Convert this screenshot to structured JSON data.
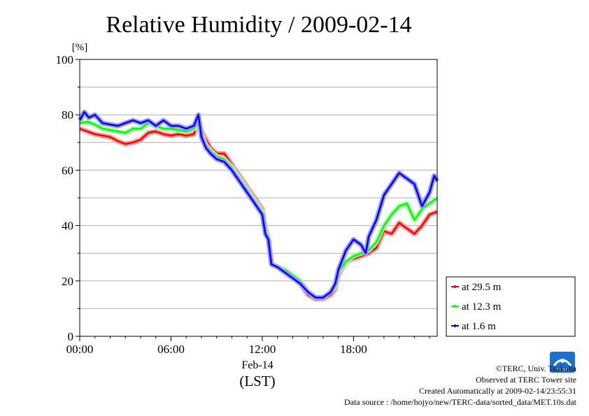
{
  "chart_data": {
    "type": "line",
    "title": "Relative Humidity / 2009-02-14",
    "ylabel": "[%]",
    "xlabel": "Feb-14",
    "xlabel2": "(LST)",
    "ylim": [
      0,
      100
    ],
    "yticks": [
      "0",
      "20",
      "40",
      "60",
      "80",
      "100"
    ],
    "xlim": [
      0,
      23.5
    ],
    "xticks": [
      {
        "h": 0,
        "label": "00:00"
      },
      {
        "h": 6,
        "label": "06:00"
      },
      {
        "h": 12,
        "label": "12:00"
      },
      {
        "h": 18,
        "label": "18:00"
      }
    ],
    "grid": "horizontal",
    "legend_position": "bottom-right-outside",
    "series": [
      {
        "name": "at 29.5 m",
        "color": "#ff0000",
        "points": [
          [
            0,
            75
          ],
          [
            0.5,
            74
          ],
          [
            1,
            73
          ],
          [
            1.5,
            72.5
          ],
          [
            2,
            72
          ],
          [
            2.5,
            70.5
          ],
          [
            3,
            69.5
          ],
          [
            3.5,
            70
          ],
          [
            4,
            71
          ],
          [
            4.5,
            73.5
          ],
          [
            5,
            74
          ],
          [
            5.5,
            73
          ],
          [
            6,
            72.5
          ],
          [
            6.5,
            73
          ],
          [
            7,
            72.5
          ],
          [
            7.5,
            73
          ],
          [
            7.8,
            79
          ],
          [
            8,
            74
          ],
          [
            8.3,
            71
          ],
          [
            8.6,
            68
          ],
          [
            9,
            66
          ],
          [
            9.5,
            66
          ],
          [
            10,
            62
          ],
          [
            10.5,
            58
          ],
          [
            11,
            54
          ],
          [
            11.5,
            50
          ],
          [
            12,
            46
          ],
          [
            12.2,
            39
          ],
          [
            12.4,
            36
          ],
          [
            12.6,
            26
          ],
          [
            13,
            25
          ],
          [
            13.5,
            24
          ],
          [
            14,
            22
          ],
          [
            14.5,
            19
          ],
          [
            15,
            15
          ],
          [
            15.5,
            13.5
          ],
          [
            16,
            13.5
          ],
          [
            16.5,
            15
          ],
          [
            16.8,
            17
          ],
          [
            17,
            22
          ],
          [
            17.5,
            27
          ],
          [
            18,
            28
          ],
          [
            18.5,
            29
          ],
          [
            19,
            30
          ],
          [
            19.5,
            32
          ],
          [
            20,
            38
          ],
          [
            20.5,
            37
          ],
          [
            21,
            41
          ],
          [
            21.5,
            39
          ],
          [
            22,
            37
          ],
          [
            22.5,
            40
          ],
          [
            23,
            44
          ],
          [
            23.5,
            45
          ]
        ]
      },
      {
        "name": "at 12.3 m",
        "color": "#00ff00",
        "points": [
          [
            0,
            77
          ],
          [
            0.5,
            77.5
          ],
          [
            1,
            76.5
          ],
          [
            1.5,
            75
          ],
          [
            2,
            74.5
          ],
          [
            2.5,
            74
          ],
          [
            3,
            73.5
          ],
          [
            3.5,
            75
          ],
          [
            4,
            75
          ],
          [
            4.5,
            77
          ],
          [
            5,
            76
          ],
          [
            5.5,
            75
          ],
          [
            6,
            75
          ],
          [
            6.5,
            74.5
          ],
          [
            7,
            74
          ],
          [
            7.5,
            75
          ],
          [
            7.8,
            77
          ],
          [
            8,
            73
          ],
          [
            8.3,
            69
          ],
          [
            8.6,
            67
          ],
          [
            9,
            65
          ],
          [
            9.5,
            64
          ],
          [
            10,
            61
          ],
          [
            10.5,
            57
          ],
          [
            11,
            53
          ],
          [
            11.5,
            49
          ],
          [
            12,
            45
          ],
          [
            12.2,
            38
          ],
          [
            12.4,
            36
          ],
          [
            12.6,
            26
          ],
          [
            13,
            25
          ],
          [
            13.5,
            24
          ],
          [
            14,
            22
          ],
          [
            14.5,
            20
          ],
          [
            15,
            16
          ],
          [
            15.5,
            14
          ],
          [
            16,
            14
          ],
          [
            16.5,
            16
          ],
          [
            16.8,
            18
          ],
          [
            17,
            23
          ],
          [
            17.5,
            27
          ],
          [
            18,
            29
          ],
          [
            18.5,
            30
          ],
          [
            19,
            31
          ],
          [
            19.5,
            34
          ],
          [
            20,
            40
          ],
          [
            20.5,
            44
          ],
          [
            21,
            47
          ],
          [
            21.5,
            48
          ],
          [
            22,
            42
          ],
          [
            22.5,
            46
          ],
          [
            23,
            48
          ],
          [
            23.5,
            50
          ]
        ]
      },
      {
        "name": "at 1.6 m",
        "color": "#0000ff",
        "points": [
          [
            0,
            78
          ],
          [
            0.3,
            81
          ],
          [
            0.6,
            79
          ],
          [
            1,
            80
          ],
          [
            1.5,
            77
          ],
          [
            2,
            76.5
          ],
          [
            2.5,
            76
          ],
          [
            3,
            77
          ],
          [
            3.5,
            78
          ],
          [
            4,
            77
          ],
          [
            4.5,
            78
          ],
          [
            5,
            76
          ],
          [
            5.5,
            78
          ],
          [
            6,
            76
          ],
          [
            6.5,
            76
          ],
          [
            7,
            75
          ],
          [
            7.5,
            76
          ],
          [
            7.8,
            80
          ],
          [
            8,
            72
          ],
          [
            8.3,
            68
          ],
          [
            8.6,
            66
          ],
          [
            9,
            64
          ],
          [
            9.5,
            63
          ],
          [
            10,
            60
          ],
          [
            10.5,
            56
          ],
          [
            11,
            52
          ],
          [
            11.5,
            48
          ],
          [
            12,
            44
          ],
          [
            12.2,
            37
          ],
          [
            12.4,
            35
          ],
          [
            12.6,
            26
          ],
          [
            13,
            25
          ],
          [
            13.5,
            23
          ],
          [
            14,
            21
          ],
          [
            14.5,
            19
          ],
          [
            15,
            16
          ],
          [
            15.5,
            14
          ],
          [
            16,
            14
          ],
          [
            16.5,
            16
          ],
          [
            16.8,
            19
          ],
          [
            17,
            24
          ],
          [
            17.5,
            31
          ],
          [
            18,
            35
          ],
          [
            18.5,
            33
          ],
          [
            18.8,
            30
          ],
          [
            19,
            36
          ],
          [
            19.5,
            42
          ],
          [
            20,
            51
          ],
          [
            20.5,
            55
          ],
          [
            21,
            59
          ],
          [
            21.5,
            57
          ],
          [
            22,
            55
          ],
          [
            22.5,
            47
          ],
          [
            23,
            52
          ],
          [
            23.3,
            58
          ],
          [
            23.5,
            56
          ]
        ]
      }
    ]
  },
  "credits": {
    "copyright": "©TERC, Univ. Tsukuba",
    "observed": "Observed at TERC Tower site",
    "created": "Created Automatically at 2009-02-14/23:55:31",
    "source": "Data source : /home/hojyo/new/TERC-data/sorted_data/MET.10s.dat",
    "logo_text": "TERC"
  }
}
